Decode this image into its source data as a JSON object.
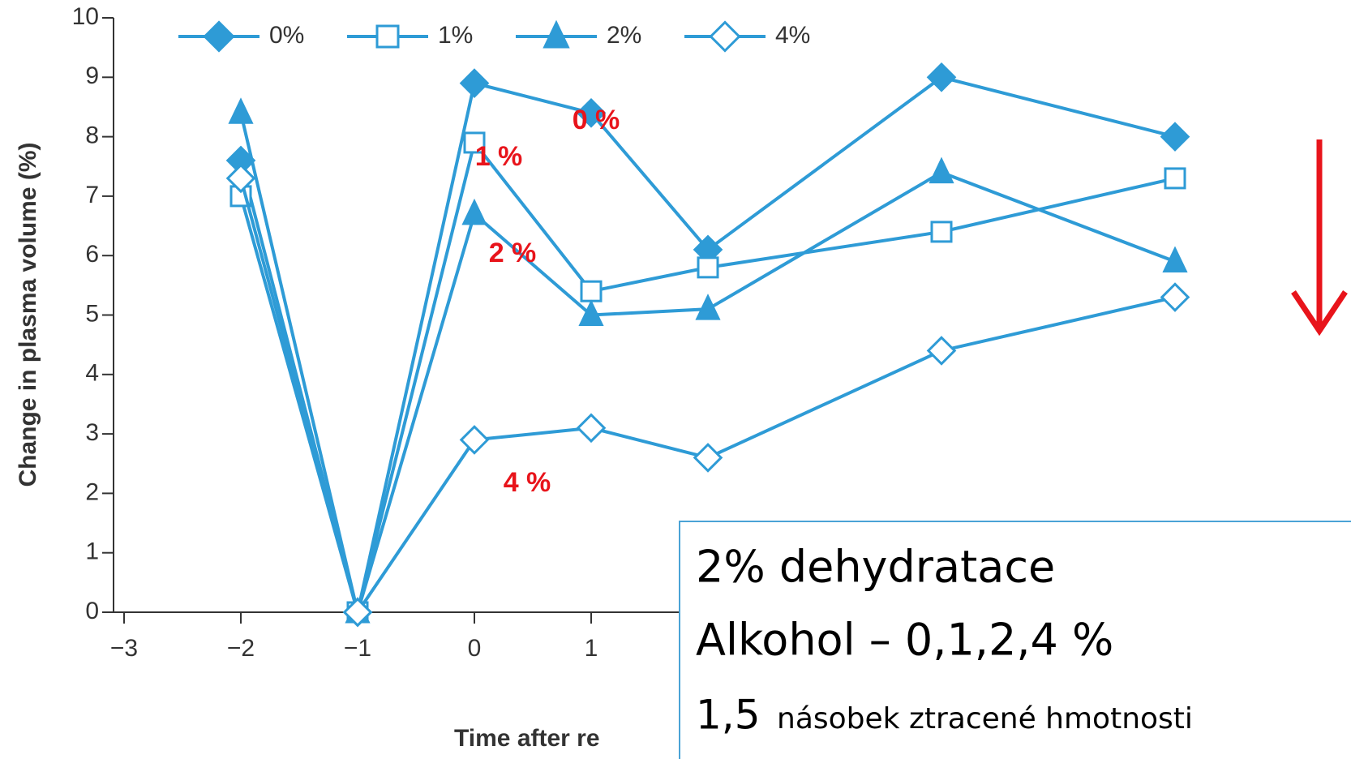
{
  "chart_data": {
    "type": "line",
    "xlabel": "Time after re",
    "ylabel": "Change in plasma volume (%)",
    "x": [
      -2,
      -1,
      0,
      1,
      2,
      4,
      6
    ],
    "series": [
      {
        "name": "0%",
        "color": "#2e9bd6",
        "marker": "diamond",
        "filled": true,
        "values": [
          7.6,
          0,
          8.9,
          8.4,
          6.1,
          9.0,
          8.0
        ]
      },
      {
        "name": "1%",
        "color": "#2e9bd6",
        "marker": "square",
        "filled": false,
        "values": [
          7.0,
          0,
          7.9,
          5.4,
          5.8,
          6.4,
          7.3
        ]
      },
      {
        "name": "2%",
        "color": "#2e9bd6",
        "marker": "triangle",
        "filled": true,
        "values": [
          8.4,
          0,
          6.7,
          5.0,
          5.1,
          7.4,
          5.9
        ]
      },
      {
        "name": "4%",
        "color": "#2e9bd6",
        "marker": "diamond",
        "filled": false,
        "values": [
          7.3,
          0,
          2.9,
          3.1,
          2.6,
          4.4,
          5.3
        ]
      }
    ],
    "xlim": [
      -3,
      6.6
    ],
    "xticks": [
      {
        "value": -3,
        "label": "−3"
      },
      {
        "value": -2,
        "label": "−2"
      },
      {
        "value": -1,
        "label": "−1"
      },
      0,
      1
    ],
    "ylim": [
      0,
      10
    ],
    "yticks": [
      0,
      1,
      2,
      3,
      4,
      5,
      6,
      7,
      8,
      9,
      10
    ],
    "legend": "top",
    "annotations": [
      "0 %",
      "1 %",
      "2 %",
      "4 %"
    ]
  },
  "textbox": {
    "line1": "2% dehydratace",
    "line2": "Alkohol – 0,1,2,4 %",
    "line3a": "1,5",
    "line3b": "násobek ztracené hmotnosti"
  }
}
